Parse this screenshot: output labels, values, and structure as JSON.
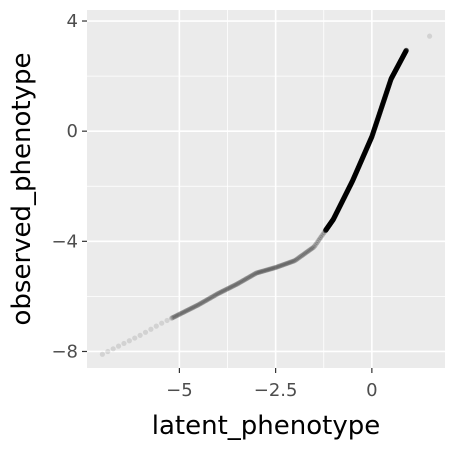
{
  "chart_data": {
    "type": "scatter",
    "title": "",
    "xlabel": "latent_phenotype",
    "ylabel": "observed_phenotype",
    "xlim": [
      -7.4,
      1.9
    ],
    "ylim": [
      -8.6,
      4.4
    ],
    "x_ticks": [
      -5,
      -2.5,
      0
    ],
    "x_tick_labels": [
      "−5",
      "−2.5",
      "0"
    ],
    "y_ticks": [
      4,
      0,
      -4,
      -8
    ],
    "y_tick_labels": [
      "4",
      "0",
      "−4",
      "−8"
    ],
    "grid": true,
    "legend": "none",
    "point_color": "#000000",
    "point_alpha": 0.08,
    "panel_background": "#ebebeb",
    "grid_color": "#ffffff",
    "curve_points": [
      {
        "x": -7.0,
        "y": -8.1
      },
      {
        "x": -6.5,
        "y": -7.75
      },
      {
        "x": -6.0,
        "y": -7.4
      },
      {
        "x": -5.5,
        "y": -7.0
      },
      {
        "x": -5.0,
        "y": -6.65
      },
      {
        "x": -4.5,
        "y": -6.3
      },
      {
        "x": -4.0,
        "y": -5.9
      },
      {
        "x": -3.5,
        "y": -5.55
      },
      {
        "x": -3.0,
        "y": -5.15
      },
      {
        "x": -2.5,
        "y": -4.95
      },
      {
        "x": -2.0,
        "y": -4.7
      },
      {
        "x": -1.5,
        "y": -4.2
      },
      {
        "x": -1.0,
        "y": -3.2
      },
      {
        "x": -0.5,
        "y": -1.8
      },
      {
        "x": 0.0,
        "y": -0.2
      },
      {
        "x": 0.5,
        "y": 1.9
      },
      {
        "x": 0.9,
        "y": 2.95
      },
      {
        "x": 1.5,
        "y": 3.45
      }
    ]
  }
}
